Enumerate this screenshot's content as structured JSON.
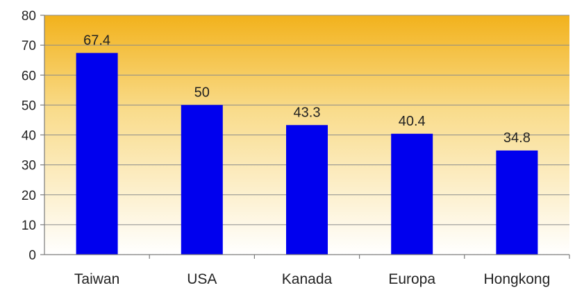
{
  "chart_data": {
    "type": "bar",
    "categories": [
      "Taiwan",
      "USA",
      "Kanada",
      "Europa",
      "Hongkong"
    ],
    "values": [
      67.4,
      50,
      43.3,
      40.4,
      34.8
    ],
    "data_labels": [
      "67.4",
      "50",
      "43.3",
      "40.4",
      "34.8"
    ],
    "title": "",
    "xlabel": "",
    "ylabel": "",
    "ylim": [
      0,
      80
    ],
    "yticks": [
      0,
      10,
      20,
      30,
      40,
      50,
      60,
      70,
      80
    ],
    "grid": true,
    "legend": "none"
  },
  "colors": {
    "bar": "#0000ee",
    "plot_gradient_top": "#f2b21c",
    "plot_gradient_bottom": "#ffffff"
  }
}
